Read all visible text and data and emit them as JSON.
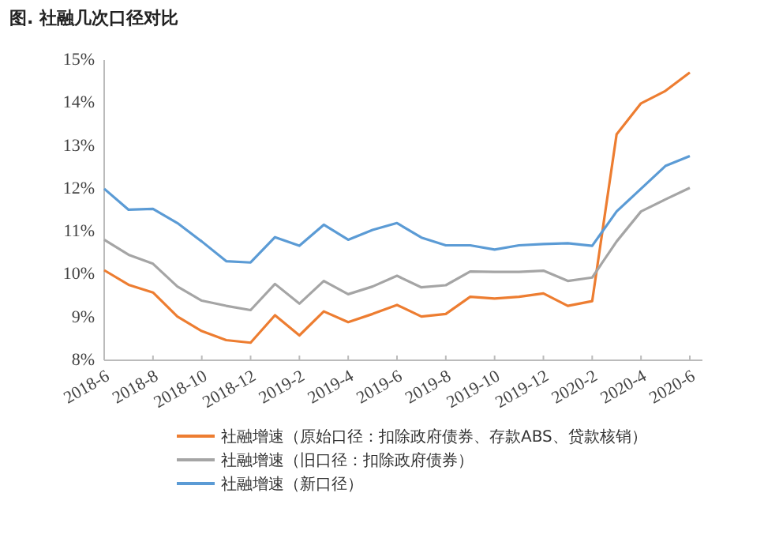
{
  "chart_data": {
    "type": "line",
    "title": "图. 社融几次口径对比",
    "categories": [
      "2018-6",
      null,
      "2018-8",
      null,
      "2018-10",
      null,
      "2018-12",
      null,
      "2019-2",
      null,
      "2019-4",
      null,
      "2019-6",
      null,
      "2019-8",
      null,
      "2019-10",
      null,
      "2019-12",
      null,
      "2020-2",
      null,
      "2020-4",
      null,
      "2020-6"
    ],
    "series": [
      {
        "name": "社融增速（原始口径：扣除政府债券、存款ABS、贷款核销）",
        "color": "#ed7d31",
        "values": [
          10.1,
          9.76,
          9.58,
          9.02,
          8.68,
          8.47,
          8.41,
          9.05,
          8.58,
          9.14,
          8.89,
          9.08,
          9.29,
          9.02,
          9.08,
          9.48,
          9.44,
          9.48,
          9.56,
          9.27,
          9.38,
          13.27,
          13.99,
          14.28,
          14.71
        ]
      },
      {
        "name": "社融增速（旧口径：扣除政府债券）",
        "color": "#a5a5a5",
        "values": [
          10.81,
          10.46,
          10.25,
          9.72,
          9.39,
          9.27,
          9.17,
          9.78,
          9.32,
          9.85,
          9.54,
          9.72,
          9.97,
          9.7,
          9.75,
          10.07,
          10.06,
          10.06,
          10.09,
          9.85,
          9.93,
          10.77,
          11.47,
          11.75,
          12.02
        ]
      },
      {
        "name": "社融增速（新口径）",
        "color": "#5b9bd5",
        "values": [
          12.0,
          11.51,
          11.53,
          11.2,
          10.77,
          10.31,
          10.28,
          10.87,
          10.67,
          11.16,
          10.81,
          11.04,
          11.2,
          10.86,
          10.68,
          10.68,
          10.58,
          10.68,
          10.71,
          10.73,
          10.67,
          11.47,
          12.0,
          12.53,
          12.76
        ]
      }
    ],
    "ylim": [
      8,
      15
    ],
    "yticks": [
      {
        "value": 8,
        "label": "8%"
      },
      {
        "value": 9,
        "label": "9%"
      },
      {
        "value": 10,
        "label": "10%"
      },
      {
        "value": 11,
        "label": "11%"
      },
      {
        "value": 12,
        "label": "12%"
      },
      {
        "value": 13,
        "label": "13%"
      },
      {
        "value": 14,
        "label": "14%"
      },
      {
        "value": 15,
        "label": "15%"
      }
    ],
    "legend": "bottom",
    "marker": "none",
    "line_style": "solid",
    "grid": false
  }
}
